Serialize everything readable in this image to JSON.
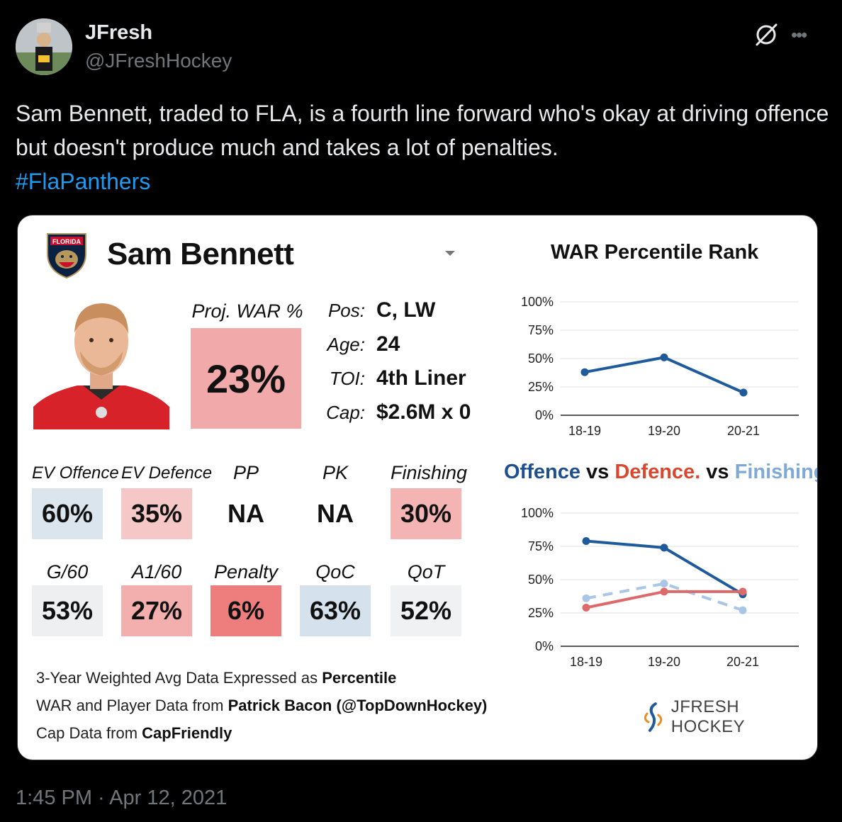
{
  "tweet": {
    "display_name": "JFresh",
    "handle": "@JFreshHockey",
    "text": "Sam Bennett, traded to FLA, is a fourth line forward who's okay at driving offence but doesn't produce much and takes a lot of penalties.",
    "hashtag": "#FlaPanthers",
    "timestamp": "1:45 PM · Apr 12, 2021"
  },
  "card": {
    "player_name": "Sam Bennett",
    "logo_text": "FLORIDA",
    "proj_war_label": "Proj. WAR %",
    "proj_war_value": "23%",
    "info": [
      {
        "label": "Pos:",
        "value": "C, LW"
      },
      {
        "label": "Age:",
        "value": "24"
      },
      {
        "label": "TOI:",
        "value": "4th Liner"
      },
      {
        "label": "Cap:",
        "value": "$2.6M x 0"
      }
    ],
    "stats_row1": [
      {
        "label": "EV Offence",
        "value": "60%",
        "color": "#dbe5ee"
      },
      {
        "label": "EV Defence",
        "value": "35%",
        "color": "#f5c7c7"
      },
      {
        "label": "PP",
        "value": "NA",
        "color": "#ffffff"
      },
      {
        "label": "PK",
        "value": "NA",
        "color": "#ffffff"
      },
      {
        "label": "Finishing",
        "value": "30%",
        "color": "#f4b4b4"
      }
    ],
    "stats_row2": [
      {
        "label": "G/60",
        "value": "53%",
        "color": "#eeeff1"
      },
      {
        "label": "A1/60",
        "value": "27%",
        "color": "#f3aeae"
      },
      {
        "label": "Penalty",
        "value": "6%",
        "color": "#ee7d7d"
      },
      {
        "label": "QoC",
        "value": "63%",
        "color": "#d5e1ec"
      },
      {
        "label": "QoT",
        "value": "52%",
        "color": "#f0f1f2"
      }
    ],
    "footnotes": [
      {
        "plain": "3-Year Weighted Avg Data Expressed as ",
        "bold": "Percentile"
      },
      {
        "plain": "WAR and Player Data from ",
        "bold": "Patrick Bacon (@TopDownHockey)"
      },
      {
        "plain": "Cap Data from ",
        "bold": "CapFriendly"
      }
    ],
    "brand": "JFRESH HOCKEY"
  },
  "chart_data": [
    {
      "type": "line",
      "title": "WAR Percentile Rank",
      "categories": [
        "18-19",
        "19-20",
        "20-21"
      ],
      "series": [
        {
          "values": [
            38,
            51,
            20
          ],
          "color": "#1f5a9a",
          "dashed": false
        }
      ],
      "yticks": [
        "100%",
        "75%",
        "50%",
        "25%",
        "0%"
      ],
      "ylim": [
        0,
        100
      ],
      "grid": true
    },
    {
      "type": "line",
      "title_parts": [
        {
          "text": "Offence",
          "color": "#1f4f8f"
        },
        {
          "text": " vs ",
          "color": "#111111"
        },
        {
          "text": "Defence.",
          "color": "#d9482e"
        },
        {
          "text": " vs ",
          "color": "#111111"
        },
        {
          "text": "Finishing",
          "color": "#7fa9d6"
        }
      ],
      "categories": [
        "18-19",
        "19-20",
        "20-21"
      ],
      "series": [
        {
          "values": [
            79,
            74,
            39
          ],
          "color": "#1f5a9a",
          "dashed": false
        },
        {
          "values": [
            36,
            47,
            27
          ],
          "color": "#a9c6e6",
          "dashed": true
        },
        {
          "values": [
            29,
            41,
            41
          ],
          "color": "#dd6a6a",
          "dashed": false
        }
      ],
      "yticks": [
        "100%",
        "75%",
        "50%",
        "25%",
        "0%"
      ],
      "ylim": [
        0,
        100
      ],
      "grid": true
    }
  ]
}
